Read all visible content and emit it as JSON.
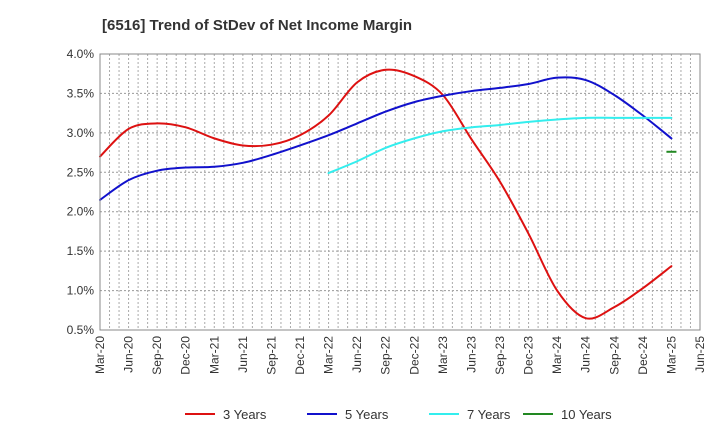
{
  "chart_data": {
    "type": "line",
    "title": "[6516]  Trend of StDev of Net Income Margin",
    "xlabel": "",
    "ylabel": "",
    "ylim": [
      0.5,
      4.0
    ],
    "yticks": [
      "0.5%",
      "1.0%",
      "1.5%",
      "2.0%",
      "2.5%",
      "3.0%",
      "3.5%",
      "4.0%"
    ],
    "categories": [
      "Mar-20",
      "Jun-20",
      "Sep-20",
      "Dec-20",
      "Mar-21",
      "Jun-21",
      "Sep-21",
      "Dec-21",
      "Mar-22",
      "Jun-22",
      "Sep-22",
      "Dec-22",
      "Mar-23",
      "Jun-23",
      "Sep-23",
      "Dec-23",
      "Mar-24",
      "Jun-24",
      "Sep-24",
      "Dec-24",
      "Mar-25",
      "Jun-25"
    ],
    "grid": true,
    "legend_position": "bottom",
    "series": [
      {
        "name": "3 Years",
        "color": "#dd1111",
        "values": [
          2.7,
          3.05,
          3.12,
          3.07,
          2.93,
          2.84,
          2.85,
          2.97,
          3.22,
          3.64,
          3.8,
          3.72,
          3.48,
          2.92,
          2.38,
          1.72,
          1.0,
          0.65,
          0.79,
          1.03,
          1.31,
          null
        ]
      },
      {
        "name": "5 Years",
        "color": "#1111cc",
        "values": [
          2.15,
          2.4,
          2.52,
          2.56,
          2.57,
          2.62,
          2.72,
          2.84,
          2.97,
          3.12,
          3.27,
          3.39,
          3.47,
          3.53,
          3.57,
          3.62,
          3.7,
          3.67,
          3.48,
          3.22,
          2.93,
          null
        ]
      },
      {
        "name": "7 Years",
        "color": "#33eeee",
        "values": [
          null,
          null,
          null,
          null,
          null,
          null,
          null,
          null,
          2.49,
          2.64,
          2.81,
          2.93,
          3.02,
          3.07,
          3.1,
          3.14,
          3.17,
          3.19,
          3.19,
          3.19,
          3.19,
          null
        ]
      },
      {
        "name": "10 Years",
        "color": "#228822",
        "values": [
          null,
          null,
          null,
          null,
          null,
          null,
          null,
          null,
          null,
          null,
          null,
          null,
          null,
          null,
          null,
          null,
          null,
          null,
          null,
          null,
          2.76,
          null
        ]
      }
    ]
  }
}
